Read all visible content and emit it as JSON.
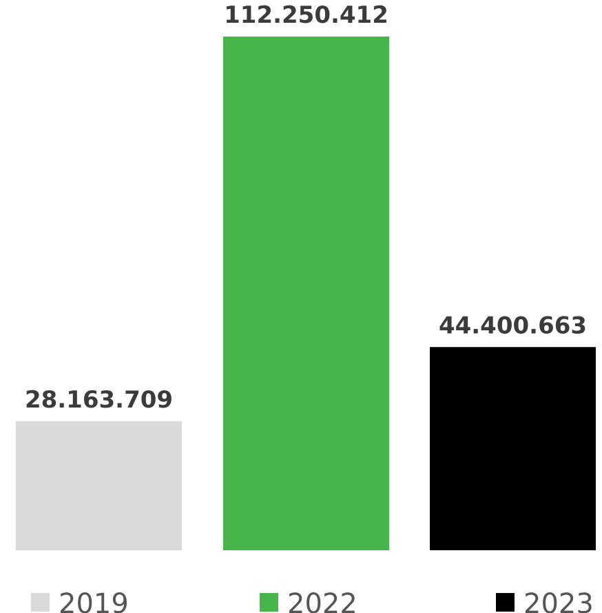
{
  "chart_data": {
    "type": "bar",
    "categories": [
      "2019",
      "2022",
      "2023"
    ],
    "values": [
      28163709,
      112250412,
      44400663
    ],
    "value_labels": [
      "28.163.709",
      "112.250.412",
      "44.400.663"
    ],
    "colors": [
      "#d9d9d9",
      "#46b64b",
      "#000000"
    ],
    "legend": [
      {
        "label": "2019",
        "color": "#d9d9d9"
      },
      {
        "label": "2022",
        "color": "#46b64b"
      },
      {
        "label": "2023",
        "color": "#000000"
      }
    ],
    "legend_position": "bottom",
    "ylim": [
      0,
      112250412
    ],
    "grid": false,
    "axes_visible": false
  }
}
